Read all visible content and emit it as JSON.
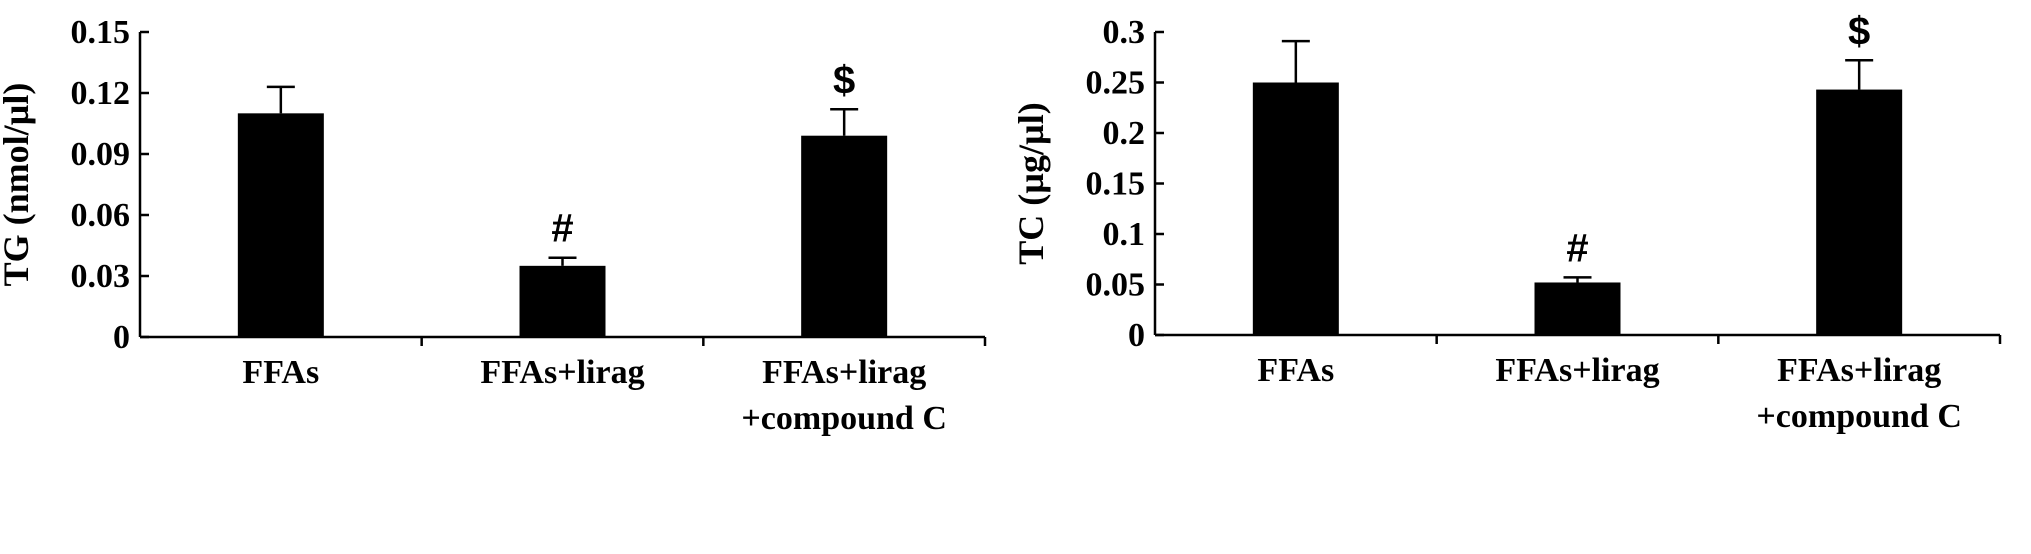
{
  "chart_data": [
    {
      "type": "bar",
      "ylabel": "TG (nmol/µl)",
      "categories": [
        [
          "FFAs"
        ],
        [
          "FFAs+lirag"
        ],
        [
          "FFAs+lirag",
          "+compound C"
        ]
      ],
      "values": [
        0.11,
        0.035,
        0.099
      ],
      "errors": [
        0.013,
        0.004,
        0.013
      ],
      "annotations": [
        "",
        "#",
        "$"
      ],
      "ylim": [
        0,
        0.15
      ],
      "yticks": [
        0,
        0.03,
        0.06,
        0.09,
        0.12,
        0.15
      ],
      "ytick_labels": [
        "0",
        "0.03",
        "0.06",
        "0.09",
        "0.12",
        "0.15"
      ],
      "bar_color": "#000000",
      "grid": false
    },
    {
      "type": "bar",
      "ylabel": "TC (µg/µl)",
      "categories": [
        [
          "FFAs"
        ],
        [
          "FFAs+lirag"
        ],
        [
          "FFAs+lirag",
          "+compound C"
        ]
      ],
      "values": [
        0.25,
        0.052,
        0.243
      ],
      "errors": [
        0.041,
        0.005,
        0.029
      ],
      "annotations": [
        "",
        "#",
        "$"
      ],
      "ylim": [
        0,
        0.3
      ],
      "yticks": [
        0,
        0.05,
        0.1,
        0.15,
        0.2,
        0.25,
        0.3
      ],
      "ytick_labels": [
        "0",
        "0.05",
        "0.1",
        "0.15",
        "0.2",
        "0.25",
        "0.3"
      ],
      "bar_color": "#000000",
      "grid": false
    }
  ]
}
